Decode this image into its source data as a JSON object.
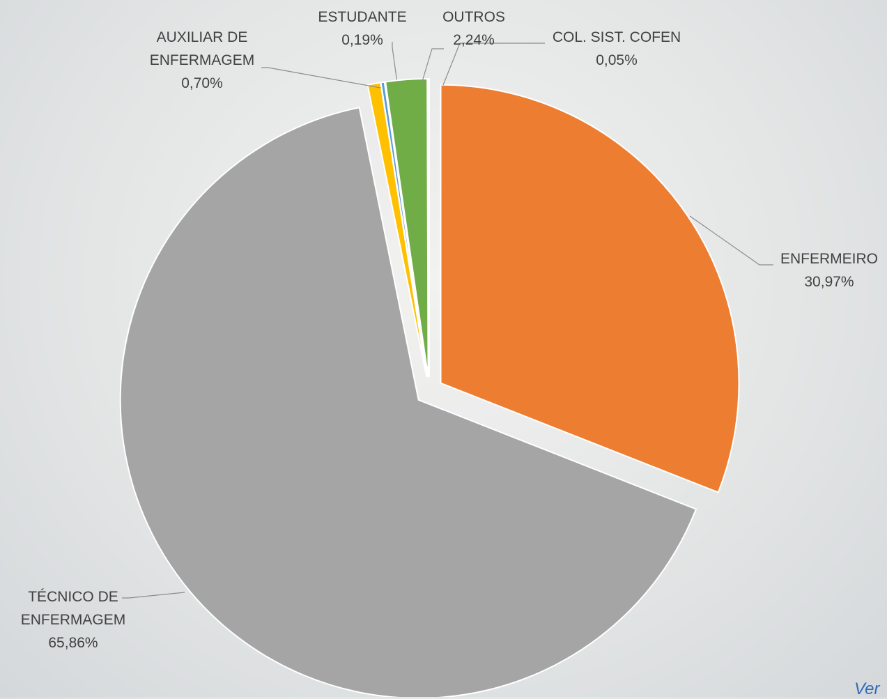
{
  "chart_data": {
    "type": "pie",
    "categories": [
      "ENFERMEIRO",
      "TÉCNICO DE ENFERMAGEM",
      "AUXILIAR DE ENFERMAGEM",
      "ESTUDANTE",
      "OUTROS",
      "COL. SIST. COFEN"
    ],
    "values": [
      30.97,
      65.86,
      0.7,
      0.19,
      2.24,
      0.05
    ],
    "value_labels": [
      "30,97%",
      "65,86%",
      "0,70%",
      "0,19%",
      "2,24%",
      "0,05%"
    ],
    "colors": [
      "#ed7d31",
      "#a5a5a5",
      "#ffc000",
      "#5b9bd5",
      "#70ad47",
      "#4472c4"
    ]
  },
  "footer": "Ver"
}
